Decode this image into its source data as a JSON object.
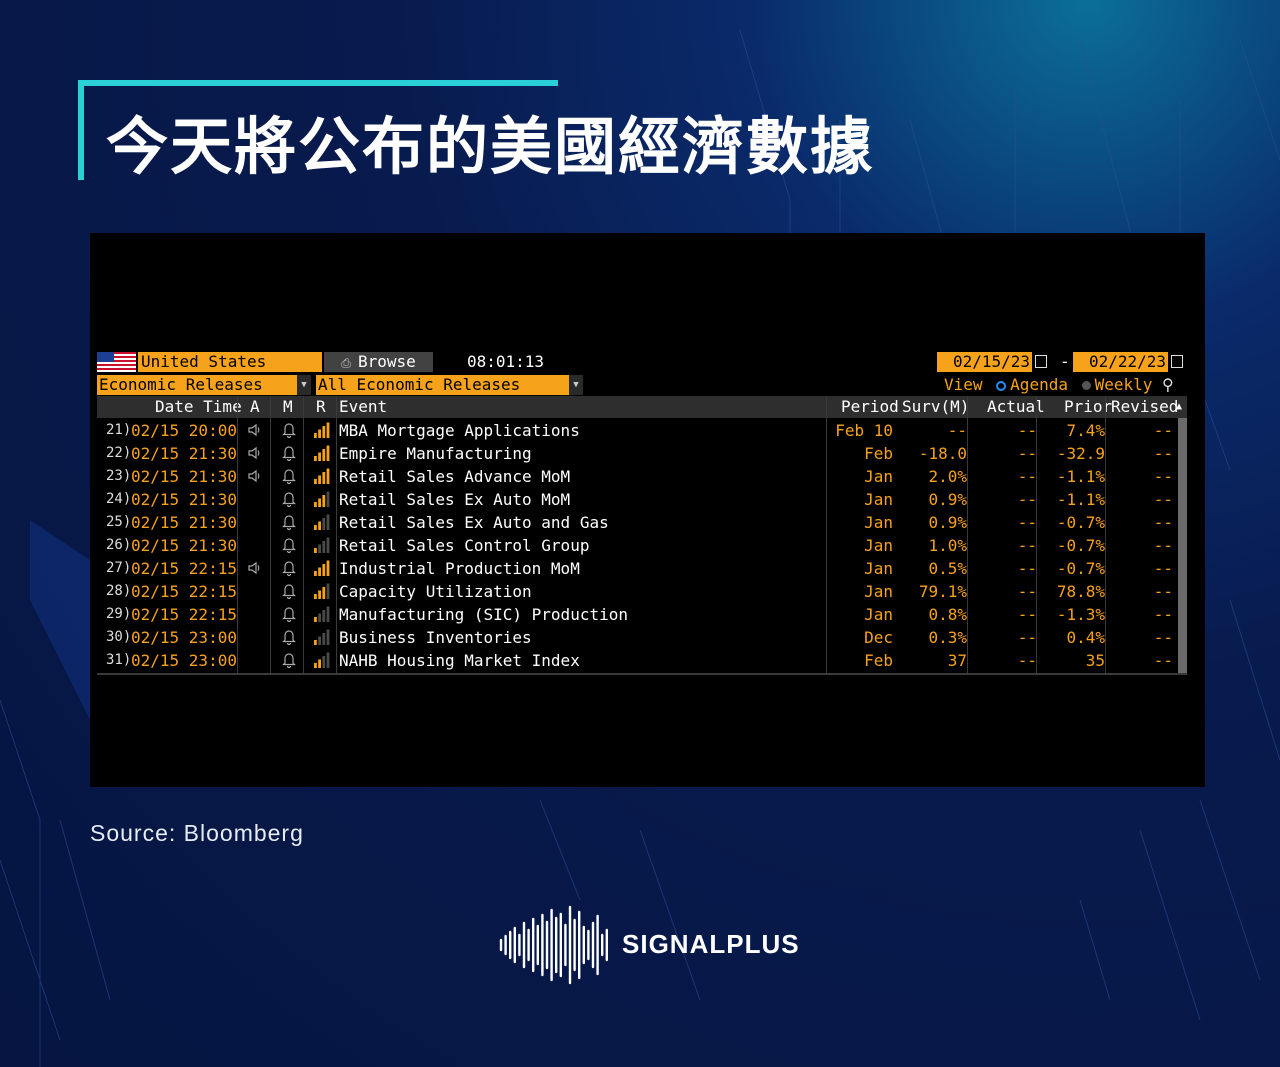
{
  "title": "今天將公布的美國經濟數據",
  "source": "Source:  Bloomberg",
  "logo_text": "SIGNALPLUS",
  "colors": {
    "accent": "#2ad0d6",
    "bloomberg_orange": "#f7a21b",
    "bg_navy": "#081b4e"
  },
  "terminal": {
    "country": "United States",
    "browse_label": "Browse",
    "clock": "08:01:13",
    "date_from": "02/15/23",
    "date_to": "02/22/23",
    "range_sep": "-",
    "filter1": "Economic Releases",
    "filter2": "All Economic Releases",
    "view_label": "View",
    "agenda_label": "Agenda",
    "weekly_label": "Weekly",
    "columns": {
      "datetime": "Date Time",
      "a": "A",
      "m": "M",
      "r": "R",
      "event": "Event",
      "period": "Period",
      "surv": "Surv(M)",
      "actual": "Actual",
      "prior": "Prior",
      "revised": "Revised"
    },
    "rows": [
      {
        "num": "21)",
        "dt": "02/15 20:00",
        "a": true,
        "r": 4,
        "event": "MBA Mortgage Applications",
        "period": "Feb 10",
        "surv": "--",
        "actual": "--",
        "prior": "7.4%",
        "revised": "--"
      },
      {
        "num": "22)",
        "dt": "02/15 21:30",
        "a": true,
        "r": 4,
        "event": "Empire Manufacturing",
        "period": "Feb",
        "surv": "-18.0",
        "actual": "--",
        "prior": "-32.9",
        "revised": "--"
      },
      {
        "num": "23)",
        "dt": "02/15 21:30",
        "a": true,
        "r": 4,
        "event": "Retail Sales Advance MoM",
        "period": "Jan",
        "surv": "2.0%",
        "actual": "--",
        "prior": "-1.1%",
        "revised": "--"
      },
      {
        "num": "24)",
        "dt": "02/15 21:30",
        "a": false,
        "r": 3,
        "event": "Retail Sales Ex Auto MoM",
        "period": "Jan",
        "surv": "0.9%",
        "actual": "--",
        "prior": "-1.1%",
        "revised": "--"
      },
      {
        "num": "25)",
        "dt": "02/15 21:30",
        "a": false,
        "r": 2,
        "event": "Retail Sales Ex Auto and Gas",
        "period": "Jan",
        "surv": "0.9%",
        "actual": "--",
        "prior": "-0.7%",
        "revised": "--"
      },
      {
        "num": "26)",
        "dt": "02/15 21:30",
        "a": false,
        "r": 1,
        "event": "Retail Sales Control Group",
        "period": "Jan",
        "surv": "1.0%",
        "actual": "--",
        "prior": "-0.7%",
        "revised": "--"
      },
      {
        "num": "27)",
        "dt": "02/15 22:15",
        "a": true,
        "r": 4,
        "event": "Industrial Production MoM",
        "period": "Jan",
        "surv": "0.5%",
        "actual": "--",
        "prior": "-0.7%",
        "revised": "--"
      },
      {
        "num": "28)",
        "dt": "02/15 22:15",
        "a": false,
        "r": 3,
        "event": "Capacity Utilization",
        "period": "Jan",
        "surv": "79.1%",
        "actual": "--",
        "prior": "78.8%",
        "revised": "--"
      },
      {
        "num": "29)",
        "dt": "02/15 22:15",
        "a": false,
        "r": 1,
        "event": "Manufacturing (SIC) Production",
        "period": "Jan",
        "surv": "0.8%",
        "actual": "--",
        "prior": "-1.3%",
        "revised": "--"
      },
      {
        "num": "30)",
        "dt": "02/15 23:00",
        "a": false,
        "r": 1,
        "event": "Business Inventories",
        "period": "Dec",
        "surv": "0.3%",
        "actual": "--",
        "prior": "0.4%",
        "revised": "--"
      },
      {
        "num": "31)",
        "dt": "02/15 23:00",
        "a": false,
        "r": 2,
        "event": "NAHB Housing Market Index",
        "period": "Feb",
        "surv": "37",
        "actual": "--",
        "prior": "35",
        "revised": "--"
      }
    ]
  }
}
